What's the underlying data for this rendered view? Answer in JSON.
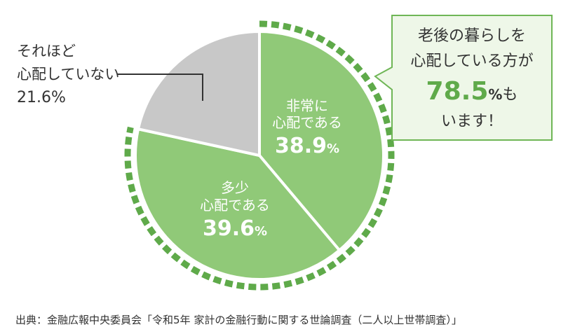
{
  "chart_data": {
    "type": "pie",
    "slices": [
      {
        "label_lines": [
          "非常に",
          "心配である"
        ],
        "value": 38.9,
        "value_text": "38.9",
        "unit": "%",
        "color": "#90c978"
      },
      {
        "label_lines": [
          "多少",
          "心配である"
        ],
        "value": 39.6,
        "value_text": "39.6",
        "unit": "%",
        "color": "#90c978"
      },
      {
        "label_lines": [
          "それほど",
          "心配していない"
        ],
        "value": 21.6,
        "value_text": "21.6%",
        "unit": "",
        "color": "#c8c8c8"
      }
    ],
    "dashed_ring_color": "#5faa4a"
  },
  "callout": {
    "line1": "老後の暮らしを",
    "line2": "心配している方が",
    "big_value": "78.5",
    "big_unit": "%",
    "tail": "も",
    "line4": "います！"
  },
  "source": "出典：金融広報中央委員会「令和5年 家計の金融行動に関する世論調査（二人以上世帯調査）」"
}
